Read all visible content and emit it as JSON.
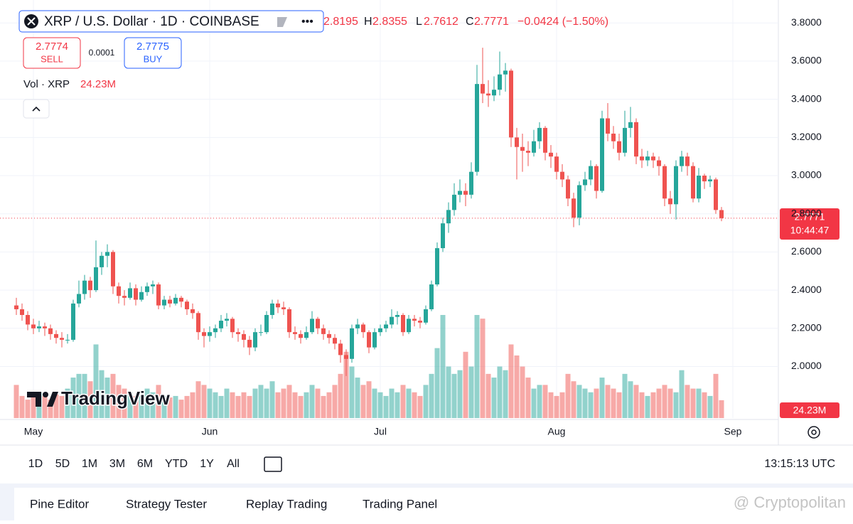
{
  "header": {
    "symbol": "XRP / U.S. Dollar · 1D · COINBASE",
    "h_label": "H",
    "l_label": "L",
    "c_label": "C",
    "change": "−0.0424 (−1.50%)",
    "sell_price": 2.7774,
    "sell": "SELL",
    "spread": 0.0001,
    "buy_price": 2.7775,
    "buy": "BUY",
    "vol_label": "Vol · XRP"
  },
  "countdown": "10:44:47",
  "toolbar": {
    "ranges": [
      "1D",
      "5D",
      "1M",
      "3M",
      "6M",
      "YTD",
      "1Y",
      "All"
    ],
    "clock": "13:15:13 UTC"
  },
  "tabs": [
    "Pine Editor",
    "Strategy Tester",
    "Replay Trading",
    "Trading Panel"
  ],
  "logo": "TradingView",
  "watermark": "@ Cryptopolitan",
  "chart_data": {
    "type": "candlestick",
    "categories": [
      null,
      null,
      null,
      "May",
      null,
      null,
      null,
      null,
      null,
      null,
      null,
      null,
      null,
      null,
      null,
      null,
      null,
      null,
      null,
      null,
      null,
      null,
      null,
      null,
      null,
      null,
      null,
      null,
      null,
      null,
      null,
      null,
      null,
      null,
      "Jun",
      null,
      null,
      null,
      null,
      null,
      null,
      null,
      null,
      null,
      null,
      null,
      null,
      null,
      null,
      null,
      null,
      null,
      null,
      null,
      null,
      null,
      null,
      null,
      null,
      null,
      null,
      null,
      null,
      null,
      "Jul",
      null,
      null,
      null,
      null,
      null,
      null,
      null,
      null,
      null,
      null,
      null,
      null,
      null,
      null,
      null,
      null,
      null,
      null,
      null,
      null,
      null,
      null,
      null,
      null,
      null,
      null,
      null,
      null,
      null,
      null,
      "Aug",
      null,
      null,
      null,
      null,
      null,
      null,
      null,
      null,
      null,
      null,
      null,
      null,
      null,
      null,
      null,
      null,
      null,
      null,
      null,
      null,
      null,
      null,
      null,
      null,
      null,
      null,
      null,
      null,
      null,
      null,
      "Sep"
    ],
    "candles": [
      [
        2.32,
        2.36,
        2.27,
        2.3
      ],
      [
        2.3,
        2.33,
        2.24,
        2.27
      ],
      [
        2.27,
        2.29,
        2.19,
        2.22
      ],
      [
        2.22,
        2.25,
        2.17,
        2.2
      ],
      [
        2.2,
        2.24,
        2.18,
        2.21
      ],
      [
        2.21,
        2.23,
        2.16,
        2.2
      ],
      [
        2.2,
        2.22,
        2.14,
        2.17
      ],
      [
        2.17,
        2.19,
        2.12,
        2.15
      ],
      [
        2.15,
        2.18,
        2.1,
        2.14
      ],
      [
        2.14,
        2.17,
        2.12,
        2.14
      ],
      [
        2.14,
        2.35,
        2.13,
        2.33
      ],
      [
        2.33,
        2.45,
        2.31,
        2.38
      ],
      [
        2.38,
        2.48,
        2.35,
        2.45
      ],
      [
        2.45,
        2.47,
        2.36,
        2.4
      ],
      [
        2.4,
        2.66,
        2.39,
        2.52
      ],
      [
        2.52,
        2.6,
        2.48,
        2.58
      ],
      [
        2.58,
        2.64,
        2.52,
        2.6
      ],
      [
        2.6,
        2.61,
        2.38,
        2.42
      ],
      [
        2.42,
        2.44,
        2.33,
        2.37
      ],
      [
        2.37,
        2.4,
        2.32,
        2.36
      ],
      [
        2.36,
        2.44,
        2.35,
        2.41
      ],
      [
        2.41,
        2.43,
        2.32,
        2.35
      ],
      [
        2.35,
        2.42,
        2.34,
        2.39
      ],
      [
        2.39,
        2.44,
        2.37,
        2.42
      ],
      [
        2.42,
        2.45,
        2.38,
        2.43
      ],
      [
        2.43,
        2.44,
        2.3,
        2.32
      ],
      [
        2.32,
        2.37,
        2.3,
        2.35
      ],
      [
        2.35,
        2.37,
        2.31,
        2.33
      ],
      [
        2.33,
        2.38,
        2.32,
        2.36
      ],
      [
        2.36,
        2.37,
        2.31,
        2.34
      ],
      [
        2.34,
        2.35,
        2.27,
        2.3
      ],
      [
        2.3,
        2.33,
        2.25,
        2.28
      ],
      [
        2.28,
        2.29,
        2.14,
        2.18
      ],
      [
        2.18,
        2.2,
        2.1,
        2.16
      ],
      [
        2.16,
        2.21,
        2.13,
        2.18
      ],
      [
        2.18,
        2.22,
        2.15,
        2.2
      ],
      [
        2.2,
        2.27,
        2.18,
        2.24
      ],
      [
        2.24,
        2.28,
        2.21,
        2.25
      ],
      [
        2.25,
        2.26,
        2.15,
        2.18
      ],
      [
        2.18,
        2.2,
        2.13,
        2.17
      ],
      [
        2.17,
        2.19,
        2.1,
        2.14
      ],
      [
        2.14,
        2.16,
        2.06,
        2.1
      ],
      [
        2.1,
        2.2,
        2.08,
        2.18
      ],
      [
        2.18,
        2.22,
        2.16,
        2.18
      ],
      [
        2.18,
        2.29,
        2.17,
        2.27
      ],
      [
        2.27,
        2.35,
        2.25,
        2.33
      ],
      [
        2.33,
        2.35,
        2.28,
        2.31
      ],
      [
        2.31,
        2.34,
        2.27,
        2.3
      ],
      [
        2.3,
        2.31,
        2.15,
        2.18
      ],
      [
        2.18,
        2.21,
        2.14,
        2.17
      ],
      [
        2.17,
        2.19,
        2.12,
        2.15
      ],
      [
        2.15,
        2.21,
        2.14,
        2.18
      ],
      [
        2.18,
        2.29,
        2.17,
        2.25
      ],
      [
        2.25,
        2.26,
        2.17,
        2.2
      ],
      [
        2.2,
        2.22,
        2.14,
        2.17
      ],
      [
        2.17,
        2.19,
        2.12,
        2.15
      ],
      [
        2.15,
        2.17,
        2.09,
        2.12
      ],
      [
        2.12,
        2.14,
        2.02,
        2.06
      ],
      [
        2.06,
        2.09,
        1.95,
        2.04
      ],
      [
        2.04,
        2.22,
        2.02,
        2.2
      ],
      [
        2.2,
        2.25,
        2.17,
        2.22
      ],
      [
        2.22,
        2.23,
        2.15,
        2.18
      ],
      [
        2.18,
        2.19,
        2.07,
        2.1
      ],
      [
        2.1,
        2.2,
        2.09,
        2.18
      ],
      [
        2.18,
        2.22,
        2.16,
        2.2
      ],
      [
        2.2,
        2.24,
        2.18,
        2.22
      ],
      [
        2.22,
        2.3,
        2.2,
        2.26
      ],
      [
        2.26,
        2.29,
        2.22,
        2.27
      ],
      [
        2.27,
        2.28,
        2.16,
        2.18
      ],
      [
        2.18,
        2.27,
        2.17,
        2.25
      ],
      [
        2.25,
        2.27,
        2.21,
        2.24
      ],
      [
        2.24,
        2.26,
        2.2,
        2.23
      ],
      [
        2.23,
        2.32,
        2.22,
        2.3
      ],
      [
        2.3,
        2.45,
        2.29,
        2.43
      ],
      [
        2.43,
        2.65,
        2.42,
        2.62
      ],
      [
        2.62,
        2.78,
        2.6,
        2.75
      ],
      [
        2.75,
        2.86,
        2.7,
        2.82
      ],
      [
        2.82,
        2.96,
        2.79,
        2.9
      ],
      [
        2.9,
        2.98,
        2.86,
        2.92
      ],
      [
        2.92,
        2.96,
        2.84,
        2.9
      ],
      [
        2.9,
        3.07,
        2.88,
        3.02
      ],
      [
        3.02,
        3.58,
        3.0,
        3.48
      ],
      [
        3.48,
        3.67,
        3.38,
        3.43
      ],
      [
        3.43,
        3.5,
        3.36,
        3.42
      ],
      [
        3.42,
        3.52,
        3.39,
        3.45
      ],
      [
        3.45,
        3.65,
        3.42,
        3.53
      ],
      [
        3.53,
        3.59,
        3.44,
        3.55
      ],
      [
        3.55,
        3.56,
        3.15,
        3.2
      ],
      [
        3.2,
        3.25,
        2.98,
        3.15
      ],
      [
        3.15,
        3.22,
        3.02,
        3.13
      ],
      [
        3.13,
        3.18,
        3.05,
        3.12
      ],
      [
        3.12,
        3.24,
        3.1,
        3.18
      ],
      [
        3.18,
        3.28,
        3.14,
        3.25
      ],
      [
        3.25,
        3.26,
        3.08,
        3.12
      ],
      [
        3.12,
        3.16,
        3.04,
        3.1
      ],
      [
        3.1,
        3.12,
        2.98,
        3.02
      ],
      [
        3.02,
        3.06,
        2.94,
        2.98
      ],
      [
        2.98,
        3.0,
        2.84,
        2.88
      ],
      [
        2.88,
        2.91,
        2.73,
        2.78
      ],
      [
        2.78,
        2.97,
        2.74,
        2.95
      ],
      [
        2.95,
        3.02,
        2.92,
        2.98
      ],
      [
        2.98,
        3.08,
        2.95,
        3.05
      ],
      [
        3.05,
        3.06,
        2.88,
        2.92
      ],
      [
        2.92,
        3.34,
        2.91,
        3.3
      ],
      [
        3.3,
        3.38,
        3.18,
        3.22
      ],
      [
        3.22,
        3.26,
        3.14,
        3.18
      ],
      [
        3.18,
        3.22,
        3.08,
        3.12
      ],
      [
        3.12,
        3.34,
        3.1,
        3.25
      ],
      [
        3.25,
        3.36,
        3.2,
        3.28
      ],
      [
        3.28,
        3.3,
        3.06,
        3.1
      ],
      [
        3.1,
        3.14,
        3.04,
        3.08
      ],
      [
        3.08,
        3.13,
        3.05,
        3.1
      ],
      [
        3.1,
        3.12,
        3.04,
        3.08
      ],
      [
        3.08,
        3.1,
        3.0,
        3.05
      ],
      [
        3.05,
        3.06,
        2.84,
        2.88
      ],
      [
        2.88,
        2.92,
        2.8,
        2.85
      ],
      [
        2.85,
        3.08,
        2.77,
        3.05
      ],
      [
        3.05,
        3.13,
        3.02,
        3.1
      ],
      [
        3.1,
        3.12,
        3.0,
        3.05
      ],
      [
        3.05,
        3.07,
        2.86,
        2.88
      ],
      [
        2.88,
        3.04,
        2.86,
        3.0
      ],
      [
        3.0,
        3.01,
        2.93,
        2.97
      ],
      [
        2.97,
        3.0,
        2.94,
        2.98
      ],
      [
        2.98,
        2.99,
        2.8,
        2.82
      ],
      [
        2.8195,
        2.8355,
        2.7612,
        2.7771
      ],
      null,
      null
    ],
    "volume": [
      45,
      30,
      25,
      28,
      35,
      30,
      25,
      32,
      30,
      40,
      55,
      60,
      60,
      50,
      100,
      65,
      55,
      60,
      45,
      40,
      35,
      30,
      35,
      40,
      35,
      45,
      30,
      28,
      30,
      25,
      30,
      35,
      50,
      45,
      40,
      35,
      30,
      40,
      35,
      30,
      35,
      30,
      40,
      45,
      40,
      50,
      35,
      40,
      45,
      35,
      30,
      35,
      45,
      40,
      30,
      35,
      45,
      60,
      90,
      70,
      55,
      45,
      50,
      40,
      35,
      30,
      40,
      35,
      45,
      40,
      35,
      30,
      45,
      60,
      95,
      140,
      70,
      60,
      65,
      90,
      70,
      140,
      135,
      60,
      55,
      70,
      65,
      100,
      85,
      70,
      55,
      40,
      45,
      45,
      35,
      30,
      35,
      60,
      50,
      45,
      40,
      35,
      40,
      55,
      45,
      40,
      35,
      60,
      50,
      45,
      35,
      30,
      35,
      40,
      45,
      40,
      35,
      65,
      45,
      40,
      40,
      35,
      30,
      60,
      24.23,
      null,
      null
    ],
    "volume_label": "24.23M",
    "ylim": [
      1.73,
      3.92
    ],
    "yticks": [
      {
        "value": 2,
        "label": "2.0000"
      },
      {
        "value": 2.2,
        "label": "2.2000"
      },
      {
        "value": 2.4,
        "label": "2.4000"
      },
      {
        "value": 2.6,
        "label": "2.6000"
      },
      {
        "value": 2.8,
        "label": "2.8000"
      },
      {
        "value": 3,
        "label": "3.0000"
      },
      {
        "value": 3.2,
        "label": "3.2000"
      },
      {
        "value": 3.4,
        "label": "3.4000"
      },
      {
        "value": 3.6,
        "label": "3.6000"
      },
      {
        "value": 3.8,
        "label": "3.8000"
      }
    ],
    "grid": true,
    "up_color": "#26a69a",
    "down_color": "#ef5350"
  }
}
